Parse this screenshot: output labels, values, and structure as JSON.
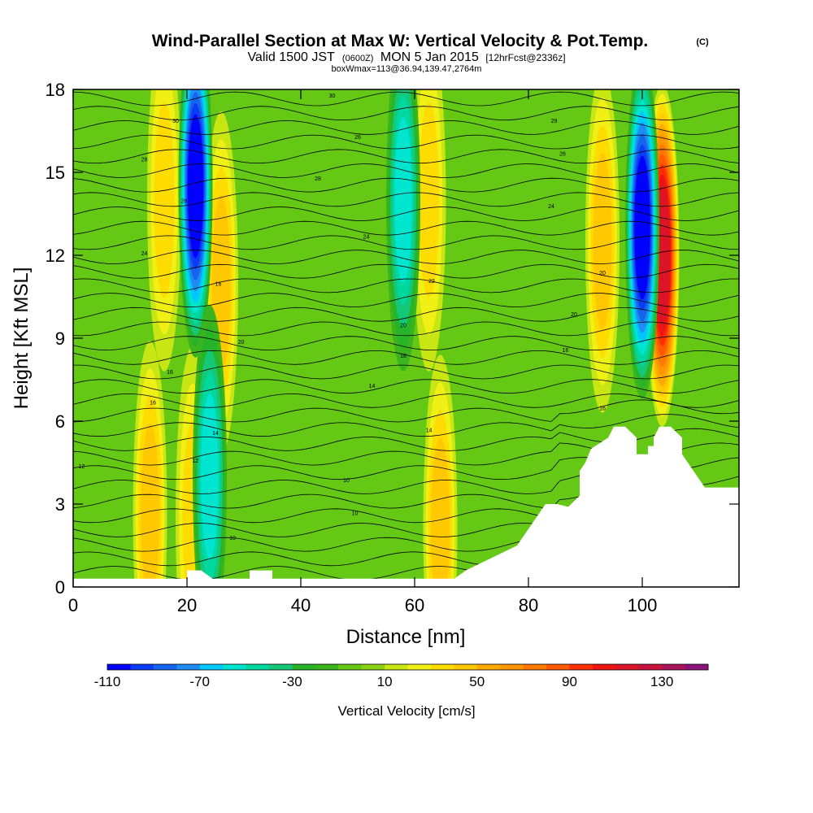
{
  "chart_data": {
    "type": "heatmap",
    "title": "Wind-Parallel Section at Max W: Vertical Velocity & Pot.Temp.",
    "title_mark": "(C)",
    "subtitle_parts": [
      "Valid 1500 JST",
      "(0600Z)",
      "MON 5 Jan 2015",
      "[12hrFcst@2336z]"
    ],
    "subtitle2": "boxWmax=113@36.94,139.47,2764m",
    "xlabel": "Distance [nm]",
    "ylabel": "Height [Kft MSL]",
    "xlim": [
      0,
      117
    ],
    "ylim": [
      0,
      18
    ],
    "xticks": [
      0,
      20,
      40,
      60,
      80,
      100
    ],
    "yticks": [
      0,
      3,
      6,
      9,
      12,
      15,
      18
    ],
    "colorbar_label": "Vertical Velocity [cm/s]",
    "colorbar_ticks": [
      -110,
      -70,
      -30,
      10,
      50,
      90,
      130
    ],
    "colorbar_levels": [
      -110,
      -100,
      -90,
      -80,
      -70,
      -60,
      -50,
      -40,
      -30,
      -20,
      -10,
      0,
      10,
      20,
      30,
      40,
      50,
      60,
      70,
      80,
      90,
      100,
      110,
      120,
      130,
      140,
      150
    ],
    "colorbar_colors": [
      "#0000ff",
      "#0b3cf5",
      "#1464ee",
      "#1e8cf0",
      "#00c8ff",
      "#00e5d0",
      "#00d8a0",
      "#14c878",
      "#28b428",
      "#3cb41e",
      "#64c814",
      "#8cd214",
      "#c8e614",
      "#f0f014",
      "#ffdc00",
      "#ffc800",
      "#ffaa00",
      "#ff9600",
      "#ff7800",
      "#ff5a00",
      "#ff3000",
      "#f01414",
      "#dc1428",
      "#c8143c",
      "#aa145a",
      "#8c1478"
    ],
    "background_level": -10,
    "updrafts_cm_s": [
      {
        "x": 13.5,
        "z": 2.7,
        "peak": 40
      },
      {
        "x": 21.0,
        "z": 2.5,
        "peak": 30
      },
      {
        "x": 26.0,
        "z": 11.0,
        "peak": 45
      },
      {
        "x": 16.0,
        "z": 14.0,
        "peak": 35
      },
      {
        "x": 64.5,
        "z": 2.2,
        "peak": 45
      },
      {
        "x": 62.5,
        "z": 14.0,
        "peak": 35
      },
      {
        "x": 93.0,
        "z": 12.5,
        "peak": 45
      },
      {
        "x": 103.5,
        "z": 12.0,
        "peak": 113
      }
    ],
    "downdrafts_cm_s": [
      {
        "x": 21.5,
        "z": 14.5,
        "peak": -110
      },
      {
        "x": 24.0,
        "z": 4.0,
        "peak": -60
      },
      {
        "x": 58.0,
        "z": 14.0,
        "peak": -60
      },
      {
        "x": 100.0,
        "z": 13.0,
        "peak": -110
      }
    ],
    "terrain_kft": {
      "x": [
        0,
        18,
        20,
        20,
        22.5,
        24.5,
        26,
        31,
        31,
        35,
        35,
        50,
        67,
        69,
        72,
        75,
        78,
        79,
        80,
        81,
        82,
        83,
        85,
        87,
        89,
        89,
        90,
        91,
        94,
        95,
        97,
        99,
        99,
        101,
        101,
        102,
        102,
        103,
        104,
        105,
        107,
        107,
        108,
        109,
        110,
        111,
        113,
        117
      ],
      "z": [
        0.3,
        0.3,
        0.3,
        0.6,
        0.6,
        0.3,
        0.3,
        0.3,
        0.6,
        0.6,
        0.3,
        0.3,
        0.3,
        0.6,
        0.9,
        1.2,
        1.5,
        1.8,
        2.1,
        2.4,
        2.7,
        3.0,
        3.0,
        2.9,
        3.3,
        4.2,
        4.5,
        5.0,
        5.4,
        5.8,
        5.8,
        5.4,
        4.8,
        4.8,
        5.1,
        5.1,
        5.4,
        5.8,
        5.8,
        5.8,
        5.4,
        4.8,
        4.5,
        4.2,
        3.9,
        3.6,
        3.6,
        3.6
      ]
    },
    "isentrope_labels": [
      {
        "text": "30",
        "x": 45.5,
        "z": 17.7
      },
      {
        "text": "30",
        "x": 18.0,
        "z": 16.8
      },
      {
        "text": "26",
        "x": 50.0,
        "z": 16.2
      },
      {
        "text": "29",
        "x": 84.5,
        "z": 16.8
      },
      {
        "text": "28",
        "x": 12.5,
        "z": 15.4
      },
      {
        "text": "26",
        "x": 86.0,
        "z": 15.6
      },
      {
        "text": "28",
        "x": 43.0,
        "z": 14.7
      },
      {
        "text": "26",
        "x": 19.5,
        "z": 13.9
      },
      {
        "text": "24",
        "x": 84.0,
        "z": 13.7
      },
      {
        "text": "24",
        "x": 51.5,
        "z": 12.6
      },
      {
        "text": "24",
        "x": 12.5,
        "z": 12.0
      },
      {
        "text": "20",
        "x": 93.0,
        "z": 11.3
      },
      {
        "text": "22",
        "x": 63.0,
        "z": 11.0
      },
      {
        "text": "16",
        "x": 25.5,
        "z": 10.9
      },
      {
        "text": "20",
        "x": 88.0,
        "z": 9.8
      },
      {
        "text": "20",
        "x": 58.0,
        "z": 9.4
      },
      {
        "text": "20",
        "x": 29.5,
        "z": 8.8
      },
      {
        "text": "18",
        "x": 58.0,
        "z": 8.3
      },
      {
        "text": "16",
        "x": 17.0,
        "z": 7.7
      },
      {
        "text": "16",
        "x": 86.5,
        "z": 8.5
      },
      {
        "text": "14",
        "x": 52.5,
        "z": 7.2
      },
      {
        "text": "16",
        "x": 14.0,
        "z": 6.6
      },
      {
        "text": "16",
        "x": 93.0,
        "z": 6.4
      },
      {
        "text": "14",
        "x": 25.0,
        "z": 5.5
      },
      {
        "text": "14",
        "x": 62.5,
        "z": 5.6
      },
      {
        "text": "12",
        "x": 21.5,
        "z": 4.5
      },
      {
        "text": "12",
        "x": 1.5,
        "z": 4.3
      },
      {
        "text": "10",
        "x": 48.0,
        "z": 3.8
      },
      {
        "text": "10",
        "x": 49.5,
        "z": 2.6
      },
      {
        "text": "10",
        "x": 28.0,
        "z": 1.7
      }
    ]
  }
}
